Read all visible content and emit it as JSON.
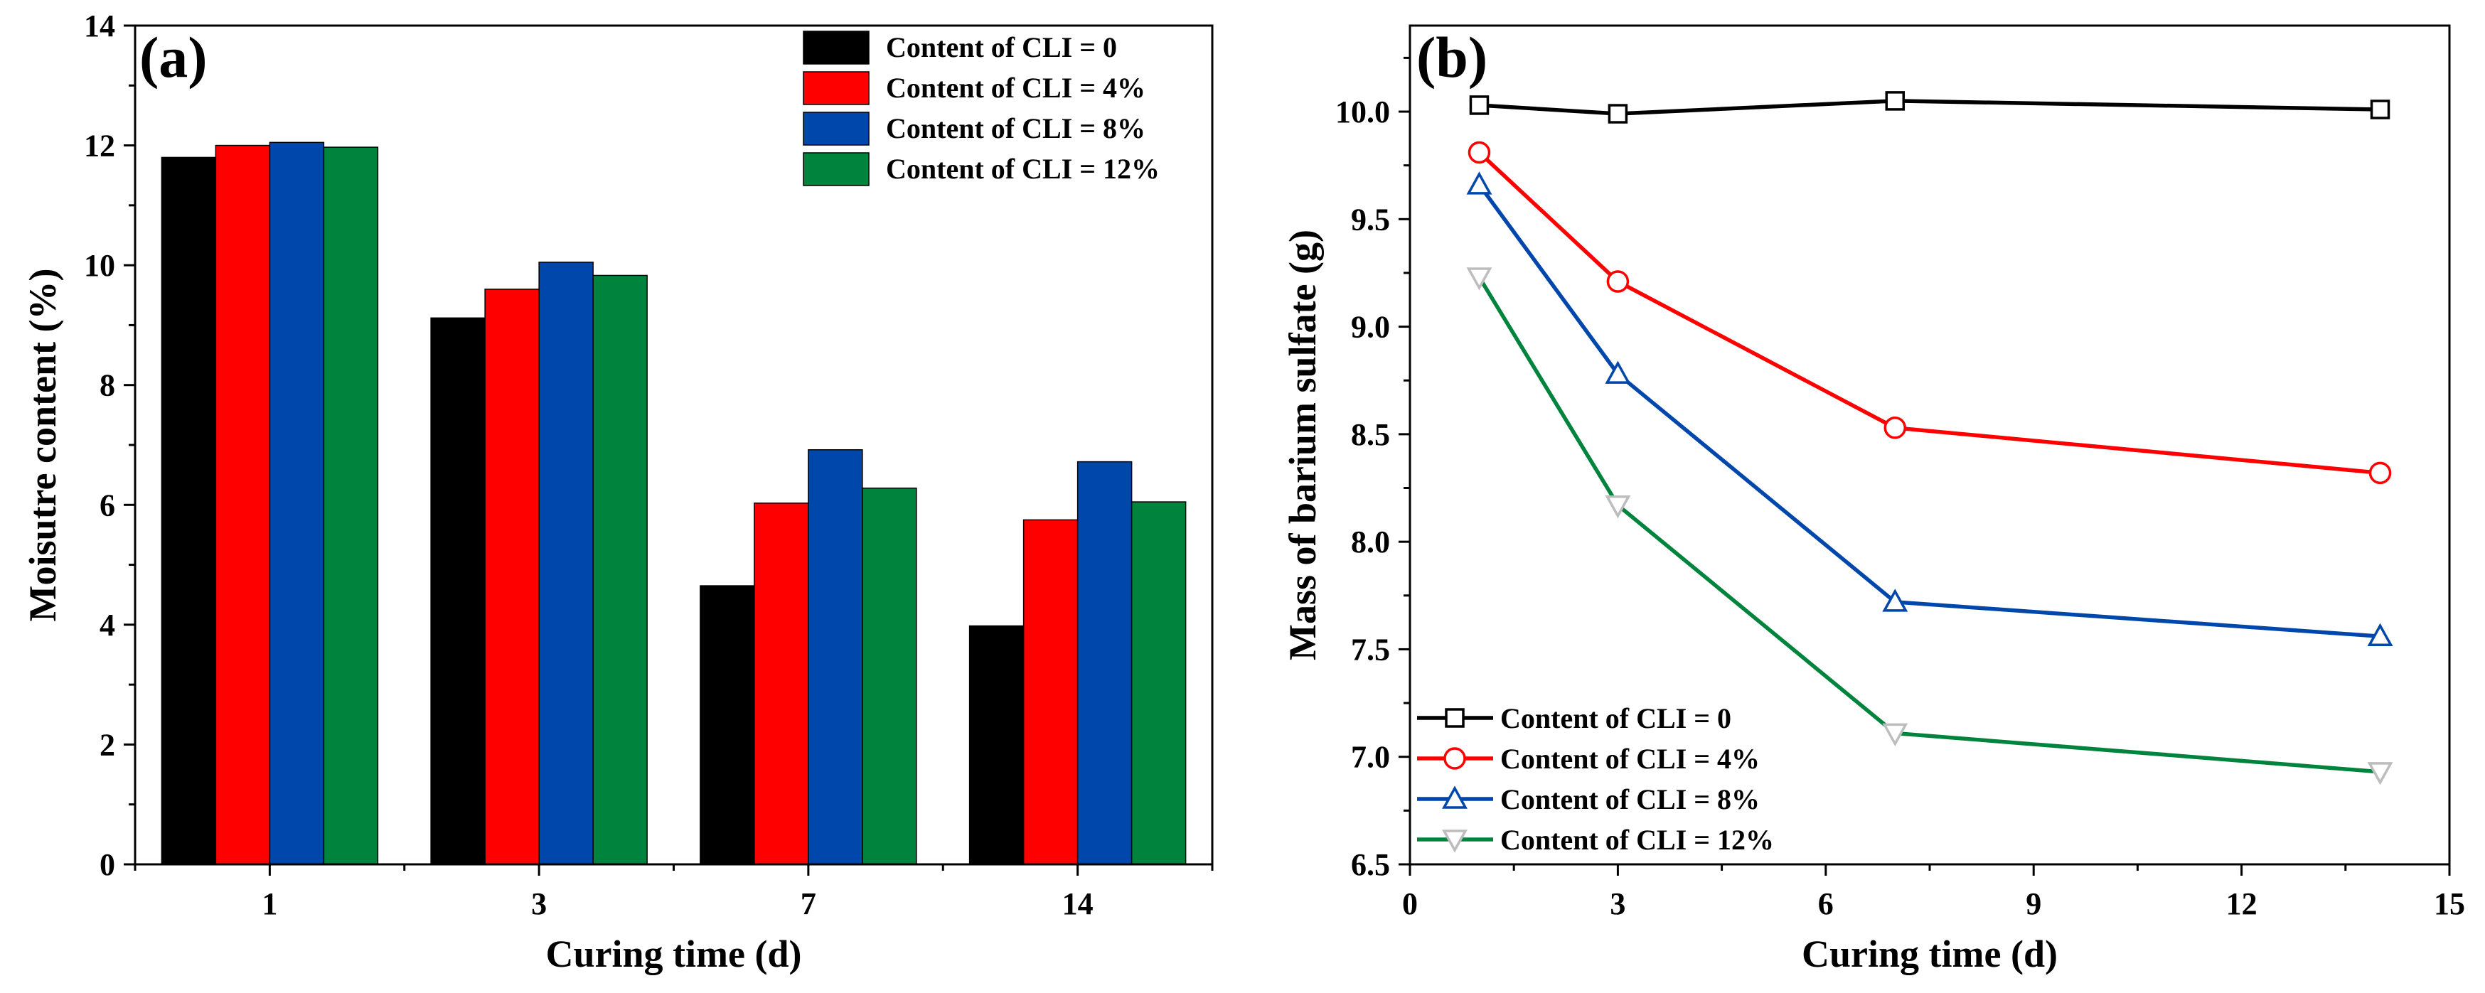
{
  "figure": {
    "panel_a_label": "(a)",
    "panel_b_label": "(b)"
  },
  "chart_data": [
    {
      "type": "bar",
      "xlabel": "Curing time (d)",
      "ylabel": "Moisutre content (%)",
      "categories": [
        "1",
        "3",
        "7",
        "14"
      ],
      "ylim": [
        0,
        14
      ],
      "yticks": [
        0,
        2,
        4,
        6,
        8,
        10,
        12,
        14
      ],
      "grid": false,
      "legend_position": "top-right",
      "series": [
        {
          "name": "Content of CLI = 0",
          "color": "#000000",
          "values": [
            11.8,
            9.12,
            4.65,
            3.98
          ]
        },
        {
          "name": "Content of CLI = 4%",
          "color": "#ff0000",
          "values": [
            12.0,
            9.6,
            6.03,
            5.75
          ]
        },
        {
          "name": "Content of CLI = 8%",
          "color": "#0047ab",
          "values": [
            12.05,
            10.05,
            6.92,
            6.72
          ]
        },
        {
          "name": "Content of CLI = 12%",
          "color": "#00843d",
          "values": [
            11.97,
            9.83,
            6.28,
            6.05
          ]
        }
      ]
    },
    {
      "type": "line",
      "xlabel": "Curing time (d)",
      "ylabel": "Mass of barium sulfate (g)",
      "xlim": [
        0,
        15
      ],
      "ylim": [
        6.5,
        10.4
      ],
      "xticks": [
        0,
        3,
        6,
        9,
        12,
        15
      ],
      "yticks": [
        6.5,
        7.0,
        7.5,
        8.0,
        8.5,
        9.0,
        9.5,
        10.0
      ],
      "grid": false,
      "legend_position": "bottom-left",
      "x": [
        1,
        3,
        7,
        14
      ],
      "series": [
        {
          "name": "Content of CLI = 0",
          "color": "#000000",
          "marker": "square",
          "values": [
            10.03,
            9.99,
            10.05,
            10.01
          ]
        },
        {
          "name": "Content of CLI = 4%",
          "color": "#ff0000",
          "marker": "circle",
          "values": [
            9.81,
            9.21,
            8.53,
            8.32
          ]
        },
        {
          "name": "Content of CLI = 8%",
          "color": "#0047ab",
          "marker": "triangle-up",
          "values": [
            9.66,
            8.78,
            7.72,
            7.56
          ]
        },
        {
          "name": "Content of CLI = 12%",
          "color": "#00843d",
          "marker": "triangle-down",
          "marker_color": "#bdbdbd",
          "values": [
            9.23,
            8.17,
            7.11,
            6.93
          ]
        }
      ]
    }
  ]
}
